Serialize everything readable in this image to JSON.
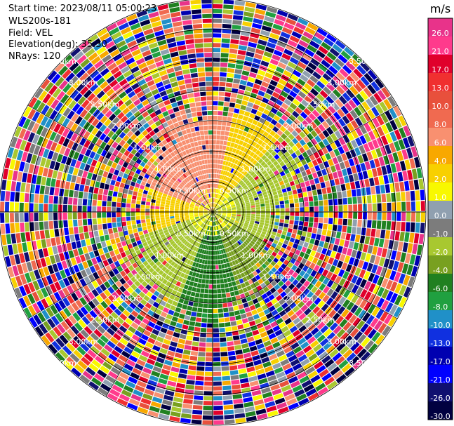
{
  "header": {
    "start_time": "Start time: 2023/08/11 05:00:23",
    "instrument": "WLS200s-181",
    "field": "Field: VEL",
    "elevation": "Elevation(deg): 35.30",
    "nrays": "NRays: 120"
  },
  "chart_data": {
    "type": "heatmap",
    "projection": "polar-ppi",
    "field": "VEL",
    "units": "m/s",
    "nrays": 120,
    "range_rings_km": [
      0.5,
      1.0,
      1.5,
      2.0,
      2.5,
      3.0,
      3.5
    ],
    "range_ring_labels": [
      "0.50km",
      "1.00km",
      "1.50km",
      "2.00km",
      "2.50km",
      "3.00km",
      "3.50km"
    ],
    "colorbar": {
      "label": "m/s",
      "vmin": -30.0,
      "vmax": 26.0,
      "tick_labels": [
        "26.0",
        "21.0",
        "17.0",
        "13.0",
        "10.0",
        "8.0",
        "6.0",
        "4.0",
        "2.0",
        "1.0",
        "0.0",
        "-1.0",
        "-2.0",
        "-4.0",
        "-6.0",
        "-8.0",
        "-10.0",
        "-13.0",
        "-17.0",
        "-21.0",
        "-26.0",
        "-30.0"
      ],
      "colors": [
        "#e8338a",
        "#ff3a8c",
        "#e0002b",
        "#f03030",
        "#e8503c",
        "#f06a50",
        "#f89070",
        "#f8a800",
        "#f8d000",
        "#f8f800",
        "#90a0b0",
        "#7c7c7c",
        "#a8c830",
        "#78a020",
        "#208020",
        "#20a040",
        "#2090c8",
        "#1030e0",
        "#0000b0",
        "#0000ff",
        "#101070",
        "#000040"
      ]
    },
    "grid": true
  }
}
